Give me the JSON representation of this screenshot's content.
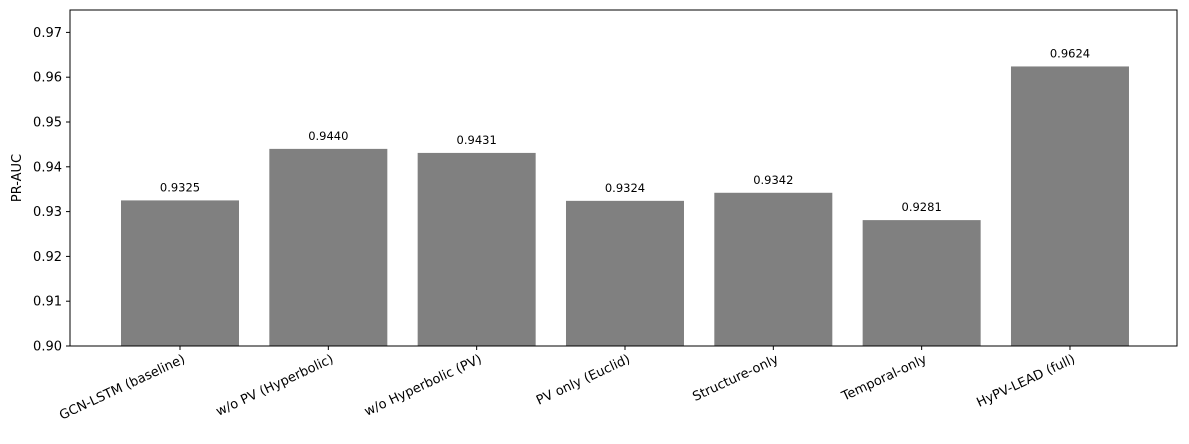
{
  "chart_data": {
    "type": "bar",
    "title": "",
    "xlabel": "",
    "ylabel": "PR-AUC",
    "ylim": [
      0.9,
      0.975
    ],
    "yticks": [
      "0.90",
      "0.91",
      "0.92",
      "0.93",
      "0.94",
      "0.95",
      "0.96",
      "0.97"
    ],
    "categories": [
      "GCN-LSTM (baseline)",
      "w/o PV (Hyperbolic)",
      "w/o Hyperbolic (PV)",
      "PV only (Euclid)",
      "Structure-only",
      "Temporal-only",
      "HyPV-LEAD (full)"
    ],
    "values": [
      0.9325,
      0.944,
      0.9431,
      0.9324,
      0.9342,
      0.9281,
      0.9624
    ],
    "data_labels": [
      "0.9325",
      "0.9440",
      "0.9431",
      "0.9324",
      "0.9342",
      "0.9281",
      "0.9624"
    ],
    "bar_color": "#808080",
    "x_tick_rotation": "25 degrees",
    "grid": false,
    "legend": "none"
  }
}
